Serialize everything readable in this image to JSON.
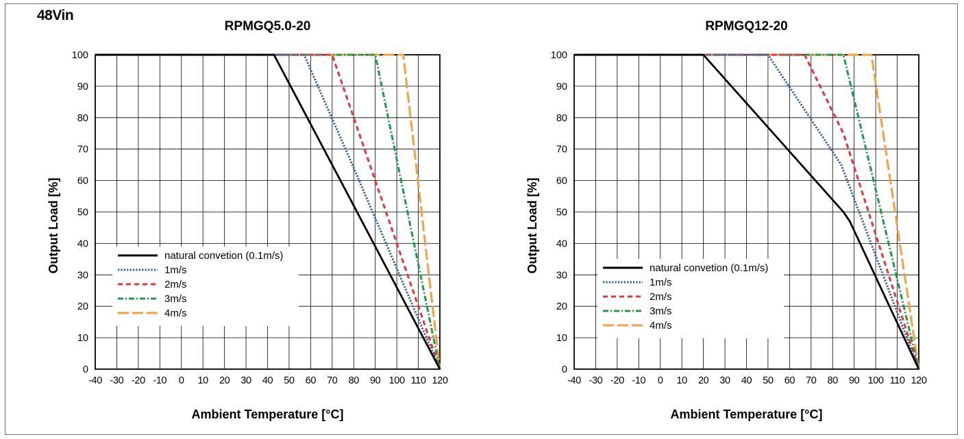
{
  "header_label": "48Vin",
  "chart_data": [
    {
      "type": "line",
      "title": "RPMGQ5.0-20",
      "xlabel": "Ambient Temperature [°C]",
      "ylabel": "Output Load [%]",
      "xlim": [
        -40,
        120
      ],
      "ylim": [
        0,
        100
      ],
      "x_ticks": [
        -40,
        -30,
        -20,
        -10,
        0,
        10,
        20,
        30,
        40,
        50,
        60,
        70,
        80,
        90,
        100,
        110,
        120
      ],
      "y_ticks": [
        0,
        10,
        20,
        30,
        40,
        50,
        60,
        70,
        80,
        90,
        100
      ],
      "grid": true,
      "legend_position": "bottom-left",
      "series": [
        {
          "name": "natural convetion (0.1m/s)",
          "color": "#000000",
          "style": "solid",
          "x": [
            -40,
            43,
            80,
            120
          ],
          "y": [
            100,
            100,
            52,
            0
          ]
        },
        {
          "name": "1m/s",
          "color": "#2a5aa8",
          "style": "dotted",
          "x": [
            -40,
            57,
            80,
            120
          ],
          "y": [
            100,
            100,
            64,
            0
          ]
        },
        {
          "name": "2m/s",
          "color": "#e8323c",
          "style": "dashed",
          "x": [
            -40,
            70,
            80,
            120
          ],
          "y": [
            100,
            100,
            80,
            0
          ]
        },
        {
          "name": "3m/s",
          "color": "#1f9a4a",
          "style": "dashdot",
          "x": [
            -40,
            90,
            120
          ],
          "y": [
            100,
            100,
            0
          ]
        },
        {
          "name": "4m/s",
          "color": "#f5a040",
          "style": "longdash",
          "x": [
            -40,
            103,
            120
          ],
          "y": [
            100,
            100,
            0
          ]
        }
      ]
    },
    {
      "type": "line",
      "title": "RPMGQ12-20",
      "xlabel": "Ambient Temperature [°C]",
      "ylabel": "Output Load [%]",
      "xlim": [
        -40,
        120
      ],
      "ylim": [
        0,
        100
      ],
      "x_ticks": [
        -40,
        -30,
        -20,
        -10,
        0,
        10,
        20,
        30,
        40,
        50,
        60,
        70,
        80,
        90,
        100,
        110,
        120
      ],
      "y_ticks": [
        0,
        10,
        20,
        30,
        40,
        50,
        60,
        70,
        80,
        90,
        100
      ],
      "grid": true,
      "legend_position": "bottom-left",
      "series": [
        {
          "name": "natural convetion (0.1m/s)",
          "color": "#000000",
          "style": "solid",
          "x": [
            -40,
            20,
            85,
            88,
            120
          ],
          "y": [
            100,
            100,
            50,
            47,
            0
          ]
        },
        {
          "name": "1m/s",
          "color": "#2a5aa8",
          "style": "dotted",
          "x": [
            -40,
            50,
            84,
            120
          ],
          "y": [
            100,
            100,
            65,
            0
          ]
        },
        {
          "name": "2m/s",
          "color": "#e8323c",
          "style": "dashed",
          "x": [
            -40,
            67,
            85,
            120
          ],
          "y": [
            100,
            100,
            75,
            0
          ]
        },
        {
          "name": "3m/s",
          "color": "#1f9a4a",
          "style": "dashdot",
          "x": [
            -40,
            85,
            120
          ],
          "y": [
            100,
            100,
            0
          ]
        },
        {
          "name": "4m/s",
          "color": "#f5a040",
          "style": "longdash",
          "x": [
            -40,
            98,
            120
          ],
          "y": [
            100,
            100,
            0
          ]
        }
      ]
    }
  ]
}
